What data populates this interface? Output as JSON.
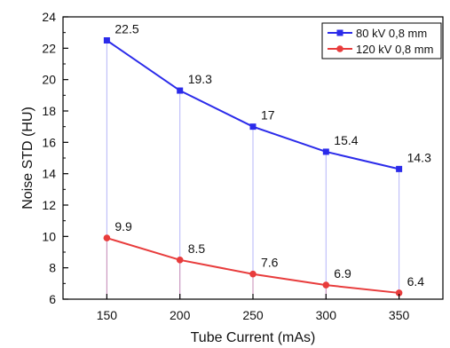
{
  "chart_data": {
    "type": "line",
    "title": "",
    "xlabel": "Tube Current (mAs)",
    "ylabel": "Noise STD (HU)",
    "x": [
      150,
      200,
      250,
      300,
      350
    ],
    "xlim": [
      120,
      380
    ],
    "ylim": [
      6,
      24
    ],
    "xticks": [
      150,
      200,
      250,
      300,
      350
    ],
    "yticks": [
      6,
      8,
      10,
      12,
      14,
      16,
      18,
      20,
      22,
      24
    ],
    "legend_position": "top-right",
    "grid": false,
    "series": [
      {
        "name": "80 kV 0,8 mm",
        "values": [
          22.5,
          19.3,
          17,
          15.4,
          14.3
        ],
        "labels": [
          "22.5",
          "19.3",
          "17",
          "15.4",
          "14.3"
        ],
        "color": "#2b2bea",
        "marker": "square"
      },
      {
        "name": "120 kV 0,8 mm",
        "values": [
          9.9,
          8.5,
          7.6,
          6.9,
          6.4
        ],
        "labels": [
          "9.9",
          "8.5",
          "7.6",
          "6.9",
          "6.4"
        ],
        "color": "#e83c3c",
        "marker": "circle"
      }
    ]
  }
}
